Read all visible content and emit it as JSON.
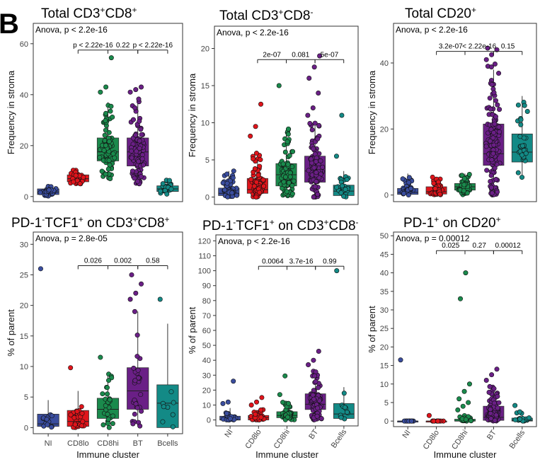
{
  "figure_label": "B",
  "colors": {
    "NI": "#3a4d9e",
    "CD8lo": "#e0141b",
    "CD8hi": "#1a8a4c",
    "BT": "#6a1f86",
    "Bcells": "#138a86"
  },
  "chart_data": [
    {
      "type": "box",
      "title_parts": [
        [
          "Total CD3",
          ""
        ],
        [
          "+",
          "sup"
        ],
        [
          "CD8",
          ""
        ],
        [
          "+",
          "sup"
        ]
      ],
      "ylabel": "Frequency in stroma",
      "xlabel": "",
      "show_x_ticks": false,
      "anova": "Anova, p < 2.2e-16",
      "ylim": [
        -2,
        68
      ],
      "yticks": [
        0,
        20,
        40,
        60
      ],
      "categories": [
        "NI",
        "CD8lo",
        "CD8hi",
        "BT",
        "Bcells"
      ],
      "groups": [
        {
          "name": "NI",
          "q1": 0.8,
          "median": 1.8,
          "q3": 3.0,
          "wlow": 0,
          "whigh": 4.5,
          "n": 40,
          "spread": [
            0.2,
            4.5
          ],
          "outliers": []
        },
        {
          "name": "CD8lo",
          "q1": 5.8,
          "median": 7.0,
          "q3": 8.5,
          "wlow": 4.8,
          "whigh": 10.5,
          "n": 45,
          "spread": [
            5,
            10.5
          ],
          "outliers": []
        },
        {
          "name": "CD8hi",
          "q1": 14,
          "median": 17.5,
          "q3": 23,
          "wlow": 7,
          "whigh": 37,
          "n": 90,
          "spread": [
            7,
            37
          ],
          "outliers": [
            41,
            43,
            54.5
          ]
        },
        {
          "name": "BT",
          "q1": 12,
          "median": 17.5,
          "q3": 23,
          "wlow": 5,
          "whigh": 38,
          "n": 120,
          "spread": [
            5,
            40
          ],
          "outliers": [
            41,
            42,
            43
          ]
        },
        {
          "name": "Bcells",
          "q1": 2,
          "median": 3,
          "q3": 4.2,
          "wlow": 0.5,
          "whigh": 6.5,
          "n": 30,
          "spread": [
            0.8,
            6.5
          ],
          "outliers": []
        }
      ],
      "comparisons": [
        {
          "from": 1,
          "to": 2,
          "label": "p < 2.22e-16"
        },
        {
          "from": 2,
          "to": 3,
          "label": "0.22"
        },
        {
          "from": 3,
          "to": 4,
          "label": "p < 2.22e-16"
        }
      ],
      "comparison_y": 57.5
    },
    {
      "type": "box",
      "title_parts": [
        [
          "Total CD3",
          ""
        ],
        [
          "+",
          "sup"
        ],
        [
          "CD8",
          ""
        ],
        [
          "-",
          "sup"
        ]
      ],
      "ylabel": "Frequency in stroma",
      "xlabel": "",
      "show_x_ticks": false,
      "anova": "Anova, p < 2.2e-16",
      "ylim": [
        -1,
        23
      ],
      "yticks": [
        0,
        5,
        10,
        15,
        20
      ],
      "categories": [
        "NI",
        "CD8lo",
        "CD8hi",
        "BT",
        "Bcells"
      ],
      "groups": [
        {
          "name": "NI",
          "q1": 0.2,
          "median": 0.5,
          "q3": 1.2,
          "wlow": 0,
          "whigh": 3.5,
          "n": 60,
          "spread": [
            0,
            3.5
          ],
          "outliers": []
        },
        {
          "name": "CD8lo",
          "q1": 0.5,
          "median": 1.0,
          "q3": 2.5,
          "wlow": 0,
          "whigh": 6,
          "n": 90,
          "spread": [
            0,
            6
          ],
          "outliers": [
            8.2,
            9.5,
            12.5
          ]
        },
        {
          "name": "CD8hi",
          "q1": 1.5,
          "median": 3.0,
          "q3": 4.5,
          "wlow": 0,
          "whigh": 9,
          "n": 100,
          "spread": [
            0,
            9.5
          ],
          "outliers": [
            15
          ]
        },
        {
          "name": "BT",
          "q1": 2.0,
          "median": 3.5,
          "q3": 5.5,
          "wlow": 0,
          "whigh": 10,
          "n": 130,
          "spread": [
            0,
            10
          ],
          "outliers": [
            11,
            12,
            14,
            16,
            17.5,
            19
          ]
        },
        {
          "name": "Bcells",
          "q1": 0.2,
          "median": 0.8,
          "q3": 1.6,
          "wlow": 0,
          "whigh": 3.5,
          "n": 30,
          "spread": [
            0,
            3.5
          ],
          "outliers": [
            5.5,
            11
          ]
        }
      ],
      "comparisons": [
        {
          "from": 1,
          "to": 2,
          "label": "2e-07"
        },
        {
          "from": 2,
          "to": 3,
          "label": "0.081"
        },
        {
          "from": 3,
          "to": 4,
          "label": "5e-07"
        }
      ],
      "comparison_y": 18.5
    },
    {
      "type": "box",
      "title_parts": [
        [
          "Total CD20",
          ""
        ],
        [
          "+",
          "sup"
        ]
      ],
      "ylabel": "Frequency in stroma",
      "xlabel": "",
      "show_x_ticks": false,
      "anova": "Anova, p < 2.2e-16",
      "ylim": [
        -2,
        52
      ],
      "yticks": [
        0,
        20,
        40
      ],
      "categories": [
        "NI",
        "CD8lo",
        "CD8hi",
        "BT",
        "Bcells"
      ],
      "groups": [
        {
          "name": "NI",
          "q1": 0.2,
          "median": 0.8,
          "q3": 2.0,
          "wlow": 0,
          "whigh": 6.5,
          "n": 40,
          "spread": [
            0,
            6.5
          ],
          "outliers": []
        },
        {
          "name": "CD8lo",
          "q1": 0.3,
          "median": 1.0,
          "q3": 2.5,
          "wlow": 0,
          "whigh": 5.5,
          "n": 50,
          "spread": [
            0,
            5.5
          ],
          "outliers": []
        },
        {
          "name": "CD8hi",
          "q1": 1.5,
          "median": 2.5,
          "q3": 3.5,
          "wlow": 0,
          "whigh": 6.5,
          "n": 60,
          "spread": [
            0,
            6.5
          ],
          "outliers": []
        },
        {
          "name": "BT",
          "q1": 9,
          "median": 12.5,
          "q3": 21.5,
          "wlow": 0,
          "whigh": 38,
          "n": 150,
          "spread": [
            0,
            40
          ],
          "outliers": [
            41,
            42.5,
            44,
            44.5
          ]
        },
        {
          "name": "Bcells",
          "q1": 10,
          "median": 13,
          "q3": 18.5,
          "wlow": 5,
          "whigh": 30,
          "n": 28,
          "spread": [
            5,
            31
          ],
          "outliers": []
        }
      ],
      "comparisons": [
        {
          "from": 1,
          "to": 2,
          "label": "3.2e-07"
        },
        {
          "from": 2,
          "to": 3,
          "label": "< 2.22e-16"
        },
        {
          "from": 3,
          "to": 4,
          "label": "0.15"
        }
      ],
      "comparison_y": 43.5
    },
    {
      "type": "box",
      "title_parts": [
        [
          "PD-1",
          ""
        ],
        [
          "-",
          "sup"
        ],
        [
          "TCF1",
          ""
        ],
        [
          "+",
          "sup"
        ],
        [
          " on CD3",
          ""
        ],
        [
          "+",
          "sup"
        ],
        [
          "CD8",
          ""
        ],
        [
          "+",
          "sup"
        ]
      ],
      "ylabel": "% of parent",
      "xlabel": "Immune cluster",
      "show_x_ticks": true,
      "rotate_x": false,
      "anova": "Anova, p = 2.8e-05",
      "ylim": [
        -1,
        32
      ],
      "yticks": [
        0,
        5,
        10,
        15,
        20,
        25,
        30
      ],
      "categories": [
        "NI",
        "CD8lo",
        "CD8hi",
        "BT",
        "Bcells"
      ],
      "groups": [
        {
          "name": "NI",
          "q1": 0.2,
          "median": 0.6,
          "q3": 2.2,
          "wlow": 0,
          "whigh": 4.5,
          "n": 14,
          "spread": [
            0,
            4.5
          ],
          "outliers": [
            26
          ]
        },
        {
          "name": "CD8lo",
          "q1": 0.2,
          "median": 1.0,
          "q3": 2.8,
          "wlow": 0,
          "whigh": 6,
          "n": 28,
          "spread": [
            0,
            6
          ],
          "outliers": [
            9.8
          ]
        },
        {
          "name": "CD8hi",
          "q1": 1.5,
          "median": 3.0,
          "q3": 4.8,
          "wlow": 0,
          "whigh": 9,
          "n": 30,
          "spread": [
            0,
            9
          ],
          "outliers": [
            11.5
          ]
        },
        {
          "name": "BT",
          "q1": 3.0,
          "median": 6.0,
          "q3": 9.8,
          "wlow": 0.2,
          "whigh": 19,
          "n": 30,
          "spread": [
            0.2,
            19
          ],
          "outliers": [
            21,
            22,
            23.5,
            25
          ]
        },
        {
          "name": "Bcells",
          "q1": 0,
          "median": 4.0,
          "q3": 7.0,
          "wlow": 0,
          "whigh": 17,
          "n": 8,
          "spread": [
            0,
            17
          ],
          "outliers": [
            21
          ]
        }
      ],
      "comparisons": [
        {
          "from": 1,
          "to": 2,
          "label": "0.026"
        },
        {
          "from": 2,
          "to": 3,
          "label": "0.002"
        },
        {
          "from": 3,
          "to": 4,
          "label": "0.58"
        }
      ],
      "comparison_y": 26.5
    },
    {
      "type": "box",
      "title_parts": [
        [
          "PD-1",
          ""
        ],
        [
          "-",
          "sup"
        ],
        [
          "TCF1",
          ""
        ],
        [
          "+",
          "sup"
        ],
        [
          " on CD3",
          ""
        ],
        [
          "+",
          "sup"
        ],
        [
          "CD8",
          ""
        ],
        [
          "-",
          "sup"
        ]
      ],
      "ylabel": "% of parent",
      "xlabel": "Immune cluster",
      "show_x_ticks": true,
      "rotate_x": true,
      "anova": "Anova, p < 2.2e-16",
      "ylim": [
        -4,
        124
      ],
      "yticks": [
        0,
        10,
        20,
        30,
        40,
        50,
        60,
        70,
        80,
        90,
        100,
        110,
        120
      ],
      "categories": [
        "NI",
        "CD8lo",
        "CD8hi",
        "BT",
        "Bcells"
      ],
      "groups": [
        {
          "name": "NI",
          "q1": 0,
          "median": 0,
          "q3": 2.5,
          "wlow": 0,
          "whigh": 8,
          "n": 30,
          "spread": [
            0,
            8
          ],
          "outliers": [
            11,
            12,
            26
          ]
        },
        {
          "name": "CD8lo",
          "q1": 0,
          "median": 1.5,
          "q3": 3.0,
          "wlow": 0,
          "whigh": 7,
          "n": 45,
          "spread": [
            0,
            7
          ],
          "outliers": [
            10,
            12,
            15
          ]
        },
        {
          "name": "CD8hi",
          "q1": 1.5,
          "median": 3.0,
          "q3": 5.5,
          "wlow": 0,
          "whigh": 12,
          "n": 55,
          "spread": [
            0,
            12
          ],
          "outliers": [
            17,
            29.5
          ]
        },
        {
          "name": "BT",
          "q1": 7,
          "median": 10.5,
          "q3": 17.5,
          "wlow": 0,
          "whigh": 33,
          "n": 130,
          "spread": [
            0,
            33
          ],
          "outliers": [
            37,
            40,
            46
          ]
        },
        {
          "name": "Bcells",
          "q1": 1,
          "median": 4.0,
          "q3": 11,
          "wlow": 0,
          "whigh": 22,
          "n": 12,
          "spread": [
            0,
            22
          ],
          "outliers": [
            100
          ]
        }
      ],
      "comparisons": [
        {
          "from": 1,
          "to": 2,
          "label": "0.0064"
        },
        {
          "from": 2,
          "to": 3,
          "label": "3.7e-16"
        },
        {
          "from": 3,
          "to": 4,
          "label": "0.99"
        }
      ],
      "comparison_y": 103
    },
    {
      "type": "box",
      "title_parts": [
        [
          "PD-1",
          ""
        ],
        [
          "+",
          "sup"
        ],
        [
          " on CD20",
          ""
        ],
        [
          "+",
          "sup"
        ]
      ],
      "ylabel": "% of parent",
      "xlabel": "Immune cluster",
      "show_x_ticks": true,
      "rotate_x": true,
      "anova": "Anova, p = 0.00012",
      "ylim": [
        -1.5,
        51
      ],
      "yticks": [
        0,
        5,
        10,
        15,
        20,
        25,
        30,
        35,
        40,
        45,
        50
      ],
      "categories": [
        "NI",
        "CD8lo",
        "CD8hi",
        "BT",
        "Bcells"
      ],
      "groups": [
        {
          "name": "NI",
          "q1": 0,
          "median": 0,
          "q3": 0,
          "wlow": 0,
          "whigh": 0,
          "n": 12,
          "spread": [
            0,
            0
          ],
          "outliers": [
            16.5
          ]
        },
        {
          "name": "CD8lo",
          "q1": 0,
          "median": 0,
          "q3": 0,
          "wlow": 0,
          "whigh": 0,
          "n": 12,
          "spread": [
            0,
            0
          ],
          "outliers": [
            1.5
          ]
        },
        {
          "name": "CD8hi",
          "q1": 0,
          "median": 0,
          "q3": 0.5,
          "wlow": 0,
          "whigh": 1.5,
          "n": 25,
          "spread": [
            0,
            1.5
          ],
          "outliers": [
            3,
            4,
            5,
            6,
            8,
            10,
            33,
            40
          ]
        },
        {
          "name": "BT",
          "q1": 0.2,
          "median": 1.0,
          "q3": 4.0,
          "wlow": 0,
          "whigh": 9.5,
          "n": 110,
          "spread": [
            0,
            9.5
          ],
          "outliers": [
            11,
            12.5,
            14
          ]
        },
        {
          "name": "Bcells",
          "q1": 0,
          "median": 0.2,
          "q3": 0.8,
          "wlow": 0,
          "whigh": 2.5,
          "n": 20,
          "spread": [
            0,
            2.5
          ],
          "outliers": [
            4.2
          ]
        }
      ],
      "comparisons": [
        {
          "from": 1,
          "to": 2,
          "label": "0.025"
        },
        {
          "from": 2,
          "to": 3,
          "label": "0.27"
        },
        {
          "from": 3,
          "to": 4,
          "label": "0.00012"
        }
      ],
      "comparison_y": 46
    }
  ]
}
